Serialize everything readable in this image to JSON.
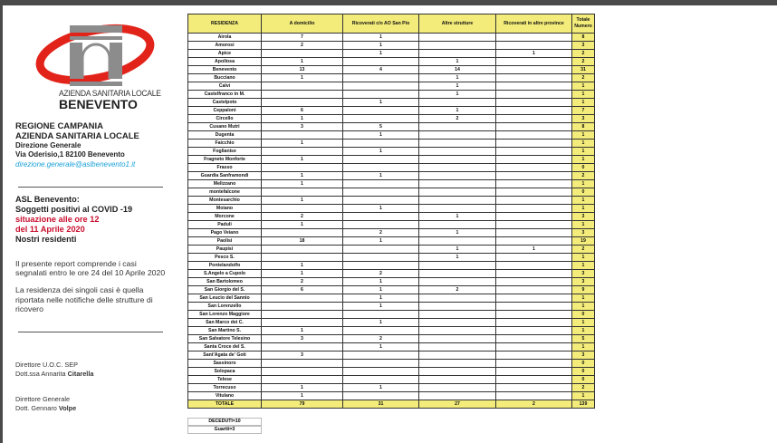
{
  "logo": {
    "line1": "AZIENDA SANITARIA LOCALE",
    "line2": "BENEVENTO",
    "colors": {
      "arc": "#e2231a",
      "building": "#8c8c8c"
    }
  },
  "header": {
    "region": "REGIONE CAMPANIA",
    "asl": "AZIENDA SANITARIA LOCALE",
    "direzione": "Direzione Generale",
    "address": "Via Oderisio,1 82100 Benevento",
    "email": "direzione.generale@aslbenevento1.it"
  },
  "report": {
    "line1": "ASL Benevento:",
    "line2": "Soggetti positivi al COVID -19",
    "line3": "situazione alle ore 12",
    "line4": "del 11 Aprile 2020",
    "line5": "Nostri residenti",
    "note1": "Il presente report comprende i casi segnalati entro le ore 24 del 10 Aprile 2020",
    "note2": "La residenza dei singoli casi è quella riportata nelle notifiche delle strutture di ricovero"
  },
  "signatures": {
    "role1": "Direttore U.O.C. SEP",
    "name1_prefix": "Dott.ssa Annarita ",
    "name1_surname": "Citarella",
    "role2": "Direttore Generale",
    "name2_prefix": "Dott. Gennaro ",
    "name2_surname": "Volpe"
  },
  "table": {
    "headers": [
      "RESIDENZA",
      "A domicilio",
      "Ricoverati c/o AO San Pio",
      "Altre strutture",
      "Ricoverati in altre province",
      "Totale Numero"
    ],
    "rows": [
      [
        "Airola",
        "7",
        "1",
        "",
        "",
        "8"
      ],
      [
        "Amorosi",
        "2",
        "1",
        "",
        "",
        "3"
      ],
      [
        "Apice",
        "",
        "1",
        "",
        "1",
        "2"
      ],
      [
        "Apollosa",
        "1",
        "",
        "1",
        "",
        "2"
      ],
      [
        "Benevento",
        "13",
        "4",
        "14",
        "",
        "31"
      ],
      [
        "Bucciano",
        "1",
        "",
        "1",
        "",
        "2"
      ],
      [
        "Calvi",
        "",
        "",
        "1",
        "",
        "1"
      ],
      [
        "Castelfranco in M.",
        "",
        "",
        "1",
        "",
        "1"
      ],
      [
        "Castelpoto",
        "",
        "1",
        "",
        "",
        "1"
      ],
      [
        "Ceppaloni",
        "6",
        "",
        "1",
        "",
        "7"
      ],
      [
        "Circello",
        "1",
        "",
        "2",
        "",
        "3"
      ],
      [
        "Cusano Mutri",
        "3",
        "5",
        "",
        "",
        "8"
      ],
      [
        "Dugenta",
        "",
        "1",
        "",
        "",
        "1"
      ],
      [
        "Faicchio",
        "1",
        "",
        "",
        "",
        "1"
      ],
      [
        "Foglianise",
        "",
        "1",
        "",
        "",
        "1"
      ],
      [
        "Fragneto Monforte",
        "1",
        "",
        "",
        "",
        "1"
      ],
      [
        "Frasso",
        "",
        "",
        "",
        "",
        "0"
      ],
      [
        "Guardia Sanframondi",
        "1",
        "1",
        "",
        "",
        "2"
      ],
      [
        "Melizzano",
        "1",
        "",
        "",
        "",
        "1"
      ],
      [
        "montefalcone",
        "",
        "",
        "",
        "",
        "0"
      ],
      [
        "Montesarchio",
        "1",
        "",
        "",
        "",
        "1"
      ],
      [
        "Moiano",
        "",
        "1",
        "",
        "",
        "1"
      ],
      [
        "Morcone",
        "2",
        "",
        "1",
        "",
        "3"
      ],
      [
        "Paduli",
        "1",
        "",
        "",
        "",
        "1"
      ],
      [
        "Pago Veiano",
        "",
        "2",
        "1",
        "",
        "3"
      ],
      [
        "Paolisi",
        "18",
        "1",
        "",
        "",
        "19"
      ],
      [
        "Paupisi",
        "",
        "",
        "1",
        "1",
        "2"
      ],
      [
        "Pesco S.",
        "",
        "",
        "1",
        "",
        "1"
      ],
      [
        "Pontelandolfo",
        "1",
        "",
        "",
        "",
        "1"
      ],
      [
        "S.Angelo a Cupolo",
        "1",
        "2",
        "",
        "",
        "3"
      ],
      [
        "San Bartolomeo",
        "2",
        "1",
        "",
        "",
        "3"
      ],
      [
        "San Giorgio del S.",
        "6",
        "1",
        "2",
        "",
        "9"
      ],
      [
        "San Leucio del Sannio",
        "",
        "1",
        "",
        "",
        "1"
      ],
      [
        "San Lorenzello",
        "",
        "1",
        "",
        "",
        "1"
      ],
      [
        "San Lorenzo Maggiore",
        "",
        "",
        "",
        "",
        "0"
      ],
      [
        "San Marco dei C.",
        "",
        "1",
        "",
        "",
        "1"
      ],
      [
        "San Martino S.",
        "1",
        "",
        "",
        "",
        "1"
      ],
      [
        "San Salvatore Telesino",
        "3",
        "2",
        "",
        "",
        "5"
      ],
      [
        "Santa Croce del S.",
        "",
        "1",
        "",
        "",
        "1"
      ],
      [
        "Sant'Agata de' Goti",
        "3",
        "",
        "",
        "",
        "3"
      ],
      [
        "Sassinoro",
        "",
        "",
        "",
        "",
        "0"
      ],
      [
        "Solopaca",
        "",
        "",
        "",
        "",
        "0"
      ],
      [
        "Telese",
        "",
        "",
        "",
        "",
        "0"
      ],
      [
        "Torrecuso",
        "1",
        "1",
        "",
        "",
        "2"
      ],
      [
        "Vitulano",
        "1",
        "",
        "",
        "",
        "1"
      ]
    ],
    "total": [
      "TOTALE",
      "79",
      "31",
      "27",
      "2",
      "139"
    ],
    "deceduti": "DECEDUTI=10",
    "guariti": "Guariti=3",
    "highlight_color": "#f3ec7a"
  }
}
